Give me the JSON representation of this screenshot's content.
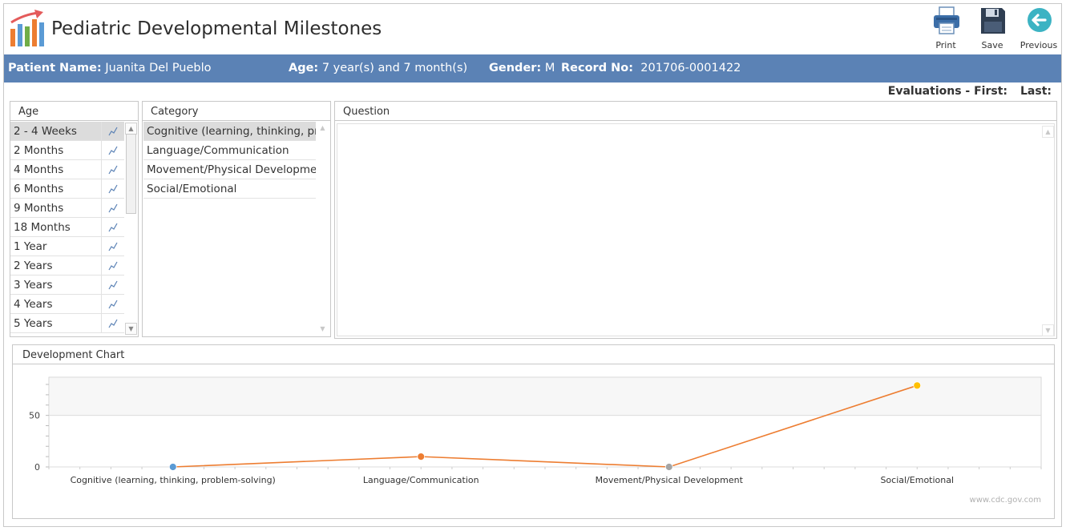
{
  "app": {
    "title": "Pediatric Developmental Milestones"
  },
  "toolbar": {
    "print_label": "Print",
    "save_label": "Save",
    "previous_label": "Previous"
  },
  "patient": {
    "name_label": "Patient Name:",
    "name": "Juanita Del Pueblo",
    "age_label": "Age:",
    "age": "7 year(s) and 7 month(s)",
    "gender_label": "Gender:",
    "gender": "M",
    "record_label": "Record No:",
    "record": "201706-0001422"
  },
  "evaluations": {
    "label": "Evaluations - First:",
    "last_label": "Last:"
  },
  "age_panel": {
    "header": "Age",
    "items": [
      {
        "label": "2 - 4 Weeks",
        "selected": true
      },
      {
        "label": "2 Months"
      },
      {
        "label": "4 Months"
      },
      {
        "label": "6 Months"
      },
      {
        "label": "9 Months"
      },
      {
        "label": "18 Months"
      },
      {
        "label": "1 Year"
      },
      {
        "label": "2 Years"
      },
      {
        "label": "3 Years"
      },
      {
        "label": "4 Years"
      },
      {
        "label": "5 Years"
      }
    ]
  },
  "category_panel": {
    "header": "Category",
    "items": [
      {
        "label": "Cognitive (learning, thinking, pr...",
        "selected": true
      },
      {
        "label": "Language/Communication"
      },
      {
        "label": "Movement/Physical Developme..."
      },
      {
        "label": "Social/Emotional"
      }
    ]
  },
  "question_panel": {
    "header": "Question"
  },
  "chart_panel": {
    "header": "Development Chart",
    "watermark": "www.cdc.gov.com"
  },
  "colors": {
    "header_bar": "#5b82b5",
    "line": "#ed7d31",
    "point_blue": "#5b9bd5",
    "point_orange": "#ed7d31",
    "point_gray": "#a5a5a5",
    "point_yellow": "#ffc000"
  },
  "chart_data": {
    "type": "line",
    "categories": [
      "Cognitive (learning, thinking, problem-solving)",
      "Language/Communication",
      "Movement/Physical Development",
      "Social/Emotional"
    ],
    "series": [
      {
        "values": [
          0,
          10,
          0,
          79
        ]
      }
    ],
    "point_colors": [
      "#5b9bd5",
      "#ed7d31",
      "#a5a5a5",
      "#ffc000"
    ],
    "yticks": [
      0,
      50
    ],
    "ylim": [
      0,
      87
    ],
    "title": "",
    "xlabel": "",
    "ylabel": "",
    "grid": true,
    "legend": "none"
  }
}
